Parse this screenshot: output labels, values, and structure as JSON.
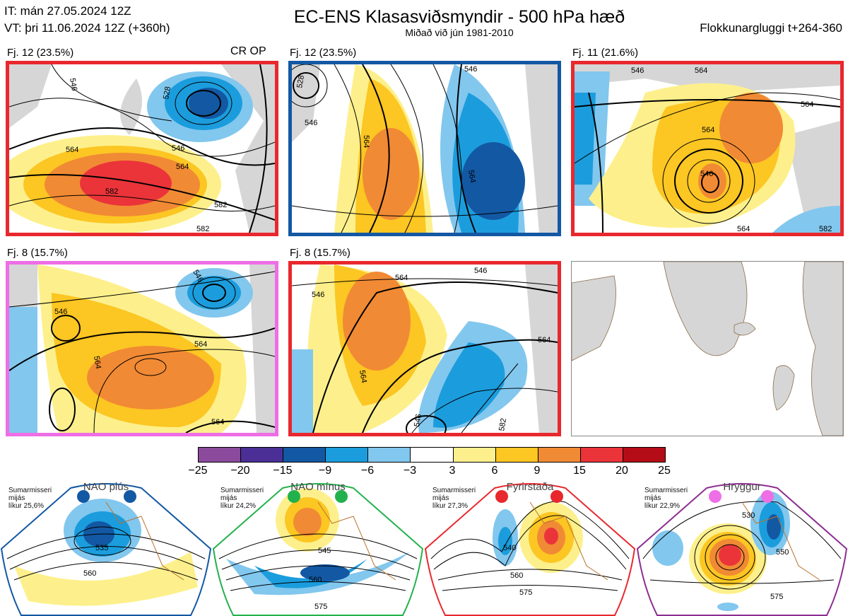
{
  "header": {
    "it_line": "IT: mán 27.05.2024 12Z",
    "vt_line": "VT: þri 11.06.2024 12Z  (+360h)",
    "title": "EC-ENS Klasasviðsmyndir - 500 hPa hæð",
    "subtitle": "Miðað við jún 1981-2010",
    "window": "Flokkunargluggi t+264-360"
  },
  "panels": [
    {
      "label": "Fj. 12 (23.5%)",
      "extra": "CR OP",
      "border": "#e8282d"
    },
    {
      "label": "Fj. 12 (23.5%)",
      "border": "#1358a3"
    },
    {
      "label": "Fj. 11 (21.6%)",
      "border": "#e8282d"
    },
    {
      "label": "Fj. 8 (15.7%)",
      "border": "#ee6ee6"
    },
    {
      "label": "Fj. 8 (15.7%)",
      "border": "#e8282d"
    }
  ],
  "contours": {
    "p1": [
      "546",
      "528",
      "564",
      "546",
      "564",
      "582",
      "582",
      "582"
    ],
    "p2": [
      "528",
      "546",
      "564",
      "546",
      "564"
    ],
    "p3": [
      "546",
      "564",
      "564",
      "564",
      "546",
      "564",
      "582"
    ],
    "p4": [
      "546",
      "546",
      "564",
      "564",
      "564"
    ],
    "p5": [
      "546",
      "564",
      "546",
      "564",
      "546",
      "564",
      "582"
    ]
  },
  "colorbar": {
    "ticks": [
      "−25",
      "−20",
      "−15",
      "−9",
      "−6",
      "−3",
      "3",
      "6",
      "9",
      "15",
      "20",
      "25"
    ],
    "colors": [
      "#8c4a9d",
      "#4b2f96",
      "#1358a3",
      "#1b9ddd",
      "#82c7ee",
      "#ffffff",
      "#fdf08c",
      "#fcc623",
      "#f18a34",
      "#ea343a",
      "#b50d17"
    ]
  },
  "regimes": [
    {
      "name": "NAO plús",
      "season": "Sumarmisseri",
      "mean": "mijás",
      "prob": "líkur 25,6%",
      "marker": "#1358a3",
      "border": "#1358a3",
      "labels": [
        "535",
        "560"
      ]
    },
    {
      "name": "NAO mínus",
      "season": "Sumarmisseri",
      "mean": "mijás",
      "prob": "líkur 24,2%",
      "marker": "#22b14c",
      "border": "#22b14c",
      "labels": [
        "545",
        "560",
        "575"
      ]
    },
    {
      "name": "Fyrirstaða",
      "season": "Sumarmisseri",
      "mean": "mijás",
      "prob": "líkur 27,3%",
      "marker": "#e8282d",
      "border": "#e8282d",
      "labels": [
        "540",
        "560",
        "575"
      ]
    },
    {
      "name": "Hryggur",
      "season": "Sumarmisseri",
      "mean": "mijás",
      "prob": "líkur 22,9%",
      "marker": "#ee6ee6",
      "border": "#8c2d91",
      "labels": [
        "530",
        "550",
        "575"
      ]
    }
  ]
}
